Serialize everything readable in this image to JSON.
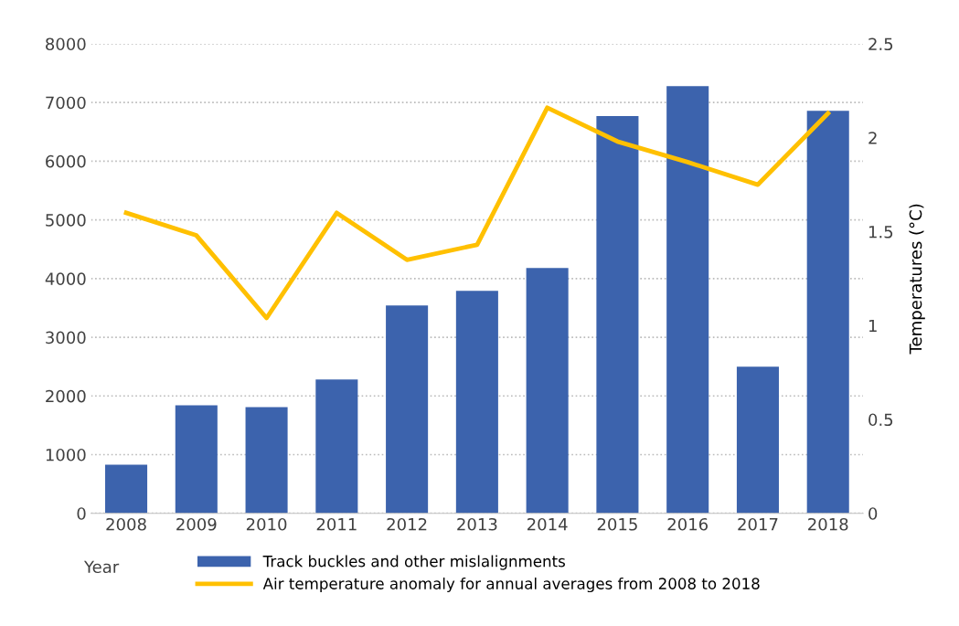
{
  "chart_data": {
    "type": "bar",
    "categories": [
      "2008",
      "2009",
      "2010",
      "2011",
      "2012",
      "2013",
      "2014",
      "2015",
      "2016",
      "2017",
      "2018"
    ],
    "xlabel": "Year",
    "y2label": "Temperatures (°C)",
    "series": [
      {
        "name": "Track buckles and other mislalignments",
        "color": "#3c63ad",
        "values": [
          830,
          1840,
          1810,
          2280,
          3540,
          3790,
          4180,
          6770,
          7280,
          2500,
          6860
        ]
      },
      {
        "name": "Air temperature anomaly for annual averages from 2008 to 2018",
        "type": "line",
        "axis": "y2",
        "color": "#ffc000",
        "values": [
          1.6,
          1.48,
          1.04,
          1.6,
          1.35,
          1.43,
          2.16,
          1.98,
          1.87,
          1.75,
          2.13
        ]
      }
    ],
    "ylim": [
      0,
      8000
    ],
    "yticks": [
      0,
      1000,
      2000,
      3000,
      4000,
      5000,
      6000,
      7000,
      8000
    ],
    "y2lim": [
      0,
      2.5
    ],
    "y2ticks": [
      0,
      0.5,
      1,
      1.5,
      2,
      2.5
    ],
    "grid": "y",
    "legend": "bottom",
    "marker": "none",
    "line_style": "solid"
  }
}
